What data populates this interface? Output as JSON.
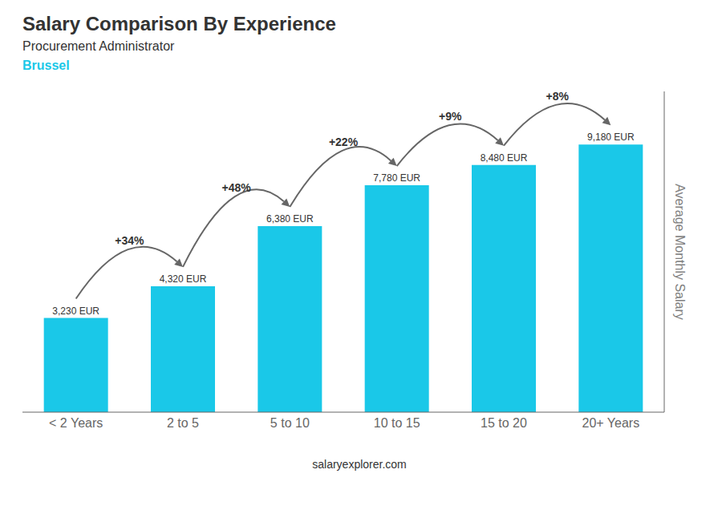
{
  "chart_data": {
    "type": "bar",
    "title": "Salary Comparison By Experience",
    "subtitle": "Procurement Administrator",
    "annotations": [
      "Brussel",
      "salaryexplorer.com"
    ],
    "ylabel": "Average Monthly Salary",
    "categories": [
      "< 2 Years",
      "2 to 5",
      "5 to 10",
      "10 to 15",
      "15 to 20",
      "20+ Years"
    ],
    "values": [
      3230,
      4320,
      6380,
      7780,
      8480,
      9180
    ],
    "value_labels": [
      "3,230 EUR",
      "4,320 EUR",
      "6,380 EUR",
      "7,780 EUR",
      "8,480 EUR",
      "9,180 EUR"
    ],
    "data_labels": true,
    "changes": [
      34,
      48,
      22,
      9,
      8
    ],
    "change_labels": [
      "+34%",
      "+48%",
      "+22%",
      "+9%",
      "+8%"
    ],
    "color": "#1ac8e8",
    "ylim": [
      0,
      11000
    ],
    "yticks": [],
    "tick_labels": "x",
    "grid": false
  }
}
